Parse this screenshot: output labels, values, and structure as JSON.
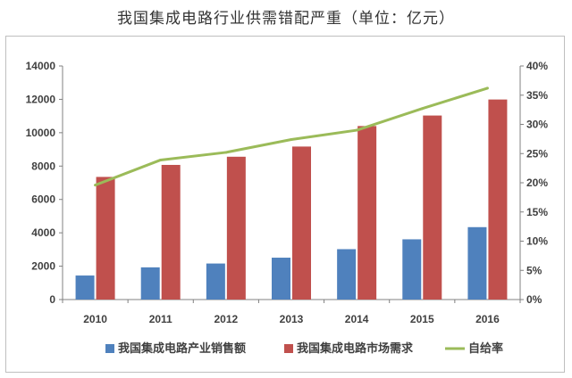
{
  "title": "我国集成电路行业供需错配严重（单位：亿元）",
  "chart_data": {
    "type": "bar",
    "categories": [
      "2010",
      "2011",
      "2012",
      "2013",
      "2014",
      "2015",
      "2016"
    ],
    "series": [
      {
        "name": "我国集成电路产业销售额",
        "type": "bar",
        "axis": "left",
        "color": "#4f81bd",
        "values": [
          1440,
          1930,
          2160,
          2510,
          3020,
          3610,
          4340
        ]
      },
      {
        "name": "我国集成电路市场需求",
        "type": "bar",
        "axis": "left",
        "color": "#c0504d",
        "values": [
          7350,
          8070,
          8560,
          9170,
          10400,
          11030,
          11990
        ]
      },
      {
        "name": "自给率",
        "type": "line",
        "axis": "right",
        "color": "#9bbb59",
        "values": [
          0.196,
          0.239,
          0.252,
          0.274,
          0.29,
          0.327,
          0.362
        ]
      }
    ],
    "y_left": {
      "min": 0,
      "max": 14000,
      "ticks": [
        "0",
        "2000",
        "4000",
        "6000",
        "8000",
        "10000",
        "12000",
        "14000"
      ]
    },
    "y_right": {
      "min": 0,
      "max": 0.4,
      "ticks": [
        "0%",
        "5%",
        "10%",
        "15%",
        "20%",
        "25%",
        "30%",
        "35%",
        "40%"
      ]
    },
    "legend_position": "bottom",
    "grid": false
  }
}
